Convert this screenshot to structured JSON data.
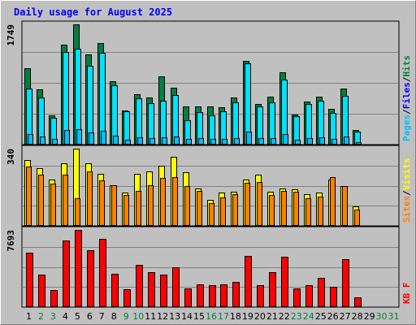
{
  "chart_data": {
    "type": "bar",
    "title": "Daily usage for August 2025",
    "x": [
      "1",
      "2",
      "3",
      "4",
      "5",
      "6",
      "7",
      "8",
      "9",
      "10",
      "11",
      "12",
      "13",
      "14",
      "15",
      "16",
      "17",
      "18",
      "19",
      "20",
      "21",
      "22",
      "23",
      "24",
      "25",
      "26",
      "27",
      "28",
      "29",
      "30",
      "31"
    ],
    "weekend_days": [
      2,
      3,
      9,
      10,
      16,
      17,
      23,
      24,
      30,
      31
    ],
    "panels": [
      {
        "id": "hits-files",
        "max_label": "1749",
        "ymax": 1749,
        "legend": [
          "Pages",
          "/",
          "Files",
          "/",
          "Hits"
        ],
        "series": [
          {
            "name": "Hits",
            "color": "#008040",
            "values": [
              1110,
              800,
              430,
              1450,
              1749,
              1310,
              1480,
              920,
              500,
              730,
              680,
              990,
              830,
              550,
              560,
              550,
              540,
              680,
              1220,
              590,
              700,
              1050,
              440,
              630,
              700,
              520,
              820,
              210,
              0,
              0,
              0
            ]
          },
          {
            "name": "Files",
            "color": "#00e0ff",
            "values": [
              810,
              680,
              390,
              1350,
              1400,
              1150,
              1330,
              860,
              480,
              670,
              600,
              640,
              720,
              360,
              470,
              420,
              480,
              620,
              1180,
              560,
              620,
              940,
              410,
              590,
              640,
              460,
              710,
              190,
              0,
              0,
              0
            ]
          },
          {
            "name": "Pages",
            "color": "#00c0ff",
            "values": [
              150,
              120,
              80,
              210,
              230,
              180,
              200,
              130,
              70,
              110,
              100,
              110,
              120,
              80,
              90,
              80,
              80,
              100,
              190,
              90,
              100,
              150,
              70,
              100,
              110,
              80,
              120,
              30,
              0,
              0,
              0
            ]
          }
        ]
      },
      {
        "id": "visits-sites",
        "max_label": "340",
        "ymax": 340,
        "legend": [
          "Sites",
          "/",
          "Visits"
        ],
        "series": [
          {
            "name": "Visits",
            "color": "#ffff00",
            "values": [
              290,
              255,
              205,
              275,
              340,
              275,
              230,
              180,
              145,
              230,
              240,
              265,
              305,
              235,
              165,
              115,
              145,
              150,
              205,
              225,
              150,
              165,
              160,
              140,
              145,
              205,
              175,
              85,
              0,
              0,
              0
            ]
          },
          {
            "name": "Sites",
            "color": "#ff8000",
            "values": [
              260,
              225,
              185,
              225,
              120,
              240,
              200,
              180,
              135,
              155,
              180,
              210,
              215,
              175,
              155,
              100,
              125,
              140,
              190,
              195,
              135,
              155,
              150,
              120,
              130,
              215,
              175,
              70,
              0,
              0,
              0
            ]
          }
        ]
      },
      {
        "id": "kbytes",
        "max_label": "7693",
        "ymax": 7693,
        "legend": [
          "KB",
          "F"
        ],
        "series": [
          {
            "name": "KBytes",
            "color": "#ff0000",
            "values": [
              5400,
              3200,
              1700,
              6600,
              7693,
              5700,
              6800,
              3300,
              1800,
              4200,
              3500,
              3200,
              4000,
              1900,
              2300,
              2200,
              2300,
              2500,
              5100,
              2200,
              3500,
              5000,
              1900,
              2200,
              2900,
              2000,
              4800,
              1000,
              0,
              0,
              0
            ]
          }
        ]
      }
    ]
  }
}
